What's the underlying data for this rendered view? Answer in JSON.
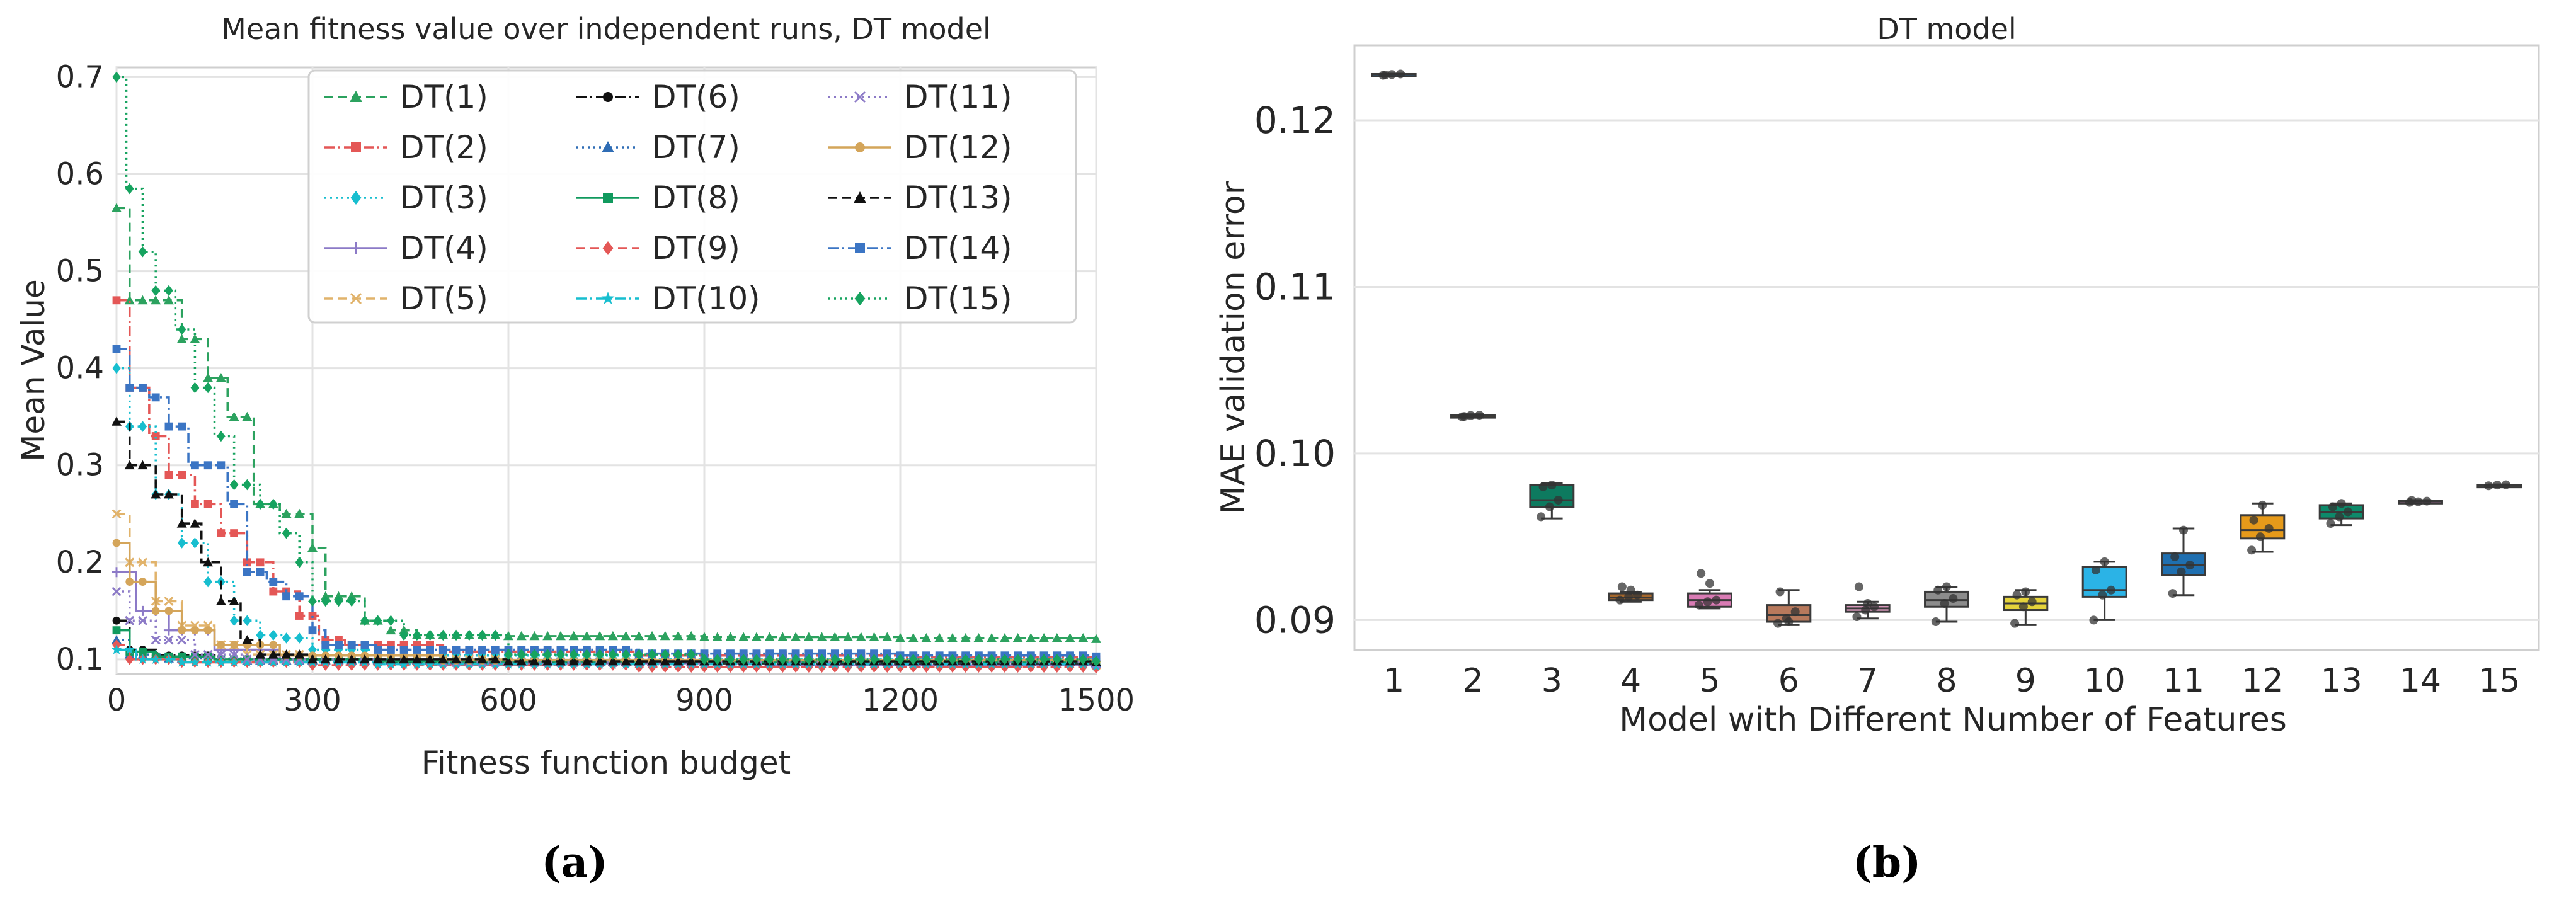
{
  "chart_data": [
    {
      "type": "line",
      "title": "Mean fitness value over independent runs, DT model",
      "xlabel": "Fitness function budget",
      "ylabel": "Mean Value",
      "xlim": [
        0,
        1500
      ],
      "ylim": [
        0.085,
        0.71
      ],
      "xticks": [
        0,
        300,
        600,
        900,
        1200,
        1500
      ],
      "yticks": [
        0.1,
        0.2,
        0.3,
        0.4,
        0.5,
        0.6,
        0.7
      ],
      "grid": true,
      "legend_position": "top-right",
      "panel_label": "(a)",
      "series": [
        {
          "name": "DT(1)",
          "color": "#2ca25f",
          "marker": "triangle",
          "dash": "dashed",
          "points": [
            [
              0,
              0.565
            ],
            [
              20,
              0.47
            ],
            [
              60,
              0.47
            ],
            [
              100,
              0.43
            ],
            [
              140,
              0.39
            ],
            [
              170,
              0.35
            ],
            [
              210,
              0.26
            ],
            [
              250,
              0.25
            ],
            [
              300,
              0.215
            ],
            [
              320,
              0.165
            ],
            [
              380,
              0.14
            ],
            [
              420,
              0.13
            ],
            [
              460,
              0.125
            ],
            [
              600,
              0.124
            ],
            [
              900,
              0.123
            ],
            [
              1200,
              0.122
            ],
            [
              1500,
              0.121
            ]
          ]
        },
        {
          "name": "DT(2)",
          "color": "#e45756",
          "marker": "square",
          "dash": "dashdot",
          "points": [
            [
              0,
              0.47
            ],
            [
              20,
              0.38
            ],
            [
              50,
              0.33
            ],
            [
              80,
              0.29
            ],
            [
              120,
              0.26
            ],
            [
              160,
              0.23
            ],
            [
              200,
              0.2
            ],
            [
              240,
              0.17
            ],
            [
              280,
              0.145
            ],
            [
              310,
              0.12
            ],
            [
              350,
              0.115
            ],
            [
              500,
              0.108
            ],
            [
              800,
              0.104
            ],
            [
              1200,
              0.102
            ],
            [
              1500,
              0.1
            ]
          ]
        },
        {
          "name": "DT(3)",
          "color": "#17becf",
          "marker": "diamond",
          "dash": "dotted",
          "points": [
            [
              0,
              0.4
            ],
            [
              20,
              0.34
            ],
            [
              60,
              0.27
            ],
            [
              100,
              0.22
            ],
            [
              140,
              0.18
            ],
            [
              180,
              0.14
            ],
            [
              220,
              0.125
            ],
            [
              260,
              0.122
            ],
            [
              300,
              0.11
            ],
            [
              400,
              0.104
            ],
            [
              800,
              0.1
            ],
            [
              1500,
              0.098
            ]
          ]
        },
        {
          "name": "DT(4)",
          "color": "#8c7ac7",
          "marker": "plus",
          "dash": "solid",
          "points": [
            [
              0,
              0.19
            ],
            [
              30,
              0.15
            ],
            [
              80,
              0.13
            ],
            [
              150,
              0.11
            ],
            [
              250,
              0.1
            ],
            [
              500,
              0.096
            ],
            [
              1000,
              0.094
            ],
            [
              1500,
              0.093
            ]
          ]
        },
        {
          "name": "DT(5)",
          "color": "#e1b36b",
          "marker": "x",
          "dash": "dashed",
          "points": [
            [
              0,
              0.25
            ],
            [
              20,
              0.2
            ],
            [
              60,
              0.16
            ],
            [
              100,
              0.135
            ],
            [
              150,
              0.115
            ],
            [
              200,
              0.105
            ],
            [
              300,
              0.1
            ],
            [
              600,
              0.097
            ],
            [
              1500,
              0.094
            ]
          ]
        },
        {
          "name": "DT(6)",
          "color": "#111111",
          "marker": "circle",
          "dash": "dashdot",
          "points": [
            [
              0,
              0.14
            ],
            [
              20,
              0.11
            ],
            [
              60,
              0.104
            ],
            [
              150,
              0.1
            ],
            [
              400,
              0.097
            ],
            [
              900,
              0.096
            ],
            [
              1500,
              0.095
            ]
          ]
        },
        {
          "name": "DT(7)",
          "color": "#2f6db5",
          "marker": "triangle",
          "dash": "dotted",
          "points": [
            [
              0,
              0.12
            ],
            [
              20,
              0.105
            ],
            [
              80,
              0.101
            ],
            [
              200,
              0.099
            ],
            [
              600,
              0.097
            ],
            [
              1500,
              0.096
            ]
          ]
        },
        {
          "name": "DT(8)",
          "color": "#119a5e",
          "marker": "square",
          "dash": "solid",
          "points": [
            [
              0,
              0.13
            ],
            [
              20,
              0.108
            ],
            [
              60,
              0.103
            ],
            [
              150,
              0.1
            ],
            [
              400,
              0.098
            ],
            [
              900,
              0.097
            ],
            [
              1500,
              0.097
            ]
          ]
        },
        {
          "name": "DT(9)",
          "color": "#e45756",
          "marker": "diamond",
          "dash": "dashed",
          "points": [
            [
              0,
              0.115
            ],
            [
              20,
              0.1
            ],
            [
              100,
              0.097
            ],
            [
              300,
              0.094
            ],
            [
              800,
              0.092
            ],
            [
              1500,
              0.091
            ]
          ]
        },
        {
          "name": "DT(10)",
          "color": "#17becf",
          "marker": "star",
          "dash": "dashdot",
          "points": [
            [
              0,
              0.11
            ],
            [
              30,
              0.1
            ],
            [
              100,
              0.097
            ],
            [
              400,
              0.095
            ],
            [
              1500,
              0.093
            ]
          ]
        },
        {
          "name": "DT(11)",
          "color": "#8c7ac7",
          "marker": "x",
          "dash": "dotted",
          "points": [
            [
              0,
              0.17
            ],
            [
              20,
              0.14
            ],
            [
              60,
              0.12
            ],
            [
              120,
              0.105
            ],
            [
              200,
              0.1
            ],
            [
              500,
              0.097
            ],
            [
              1500,
              0.095
            ]
          ]
        },
        {
          "name": "DT(12)",
          "color": "#d4a55a",
          "marker": "circle",
          "dash": "solid",
          "points": [
            [
              0,
              0.22
            ],
            [
              20,
              0.18
            ],
            [
              60,
              0.15
            ],
            [
              100,
              0.13
            ],
            [
              150,
              0.115
            ],
            [
              250,
              0.104
            ],
            [
              500,
              0.099
            ],
            [
              1500,
              0.097
            ]
          ]
        },
        {
          "name": "DT(13)",
          "color": "#111111",
          "marker": "triangle",
          "dash": "dashed",
          "points": [
            [
              0,
              0.345
            ],
            [
              20,
              0.3
            ],
            [
              60,
              0.27
            ],
            [
              100,
              0.24
            ],
            [
              130,
              0.2
            ],
            [
              160,
              0.16
            ],
            [
              190,
              0.12
            ],
            [
              220,
              0.105
            ],
            [
              300,
              0.1
            ],
            [
              600,
              0.098
            ],
            [
              1500,
              0.097
            ]
          ]
        },
        {
          "name": "DT(14)",
          "color": "#3b75c4",
          "marker": "square",
          "dash": "dashdot",
          "points": [
            [
              0,
              0.42
            ],
            [
              20,
              0.38
            ],
            [
              50,
              0.37
            ],
            [
              80,
              0.34
            ],
            [
              110,
              0.3
            ],
            [
              140,
              0.3
            ],
            [
              170,
              0.26
            ],
            [
              200,
              0.19
            ],
            [
              230,
              0.18
            ],
            [
              260,
              0.165
            ],
            [
              300,
              0.13
            ],
            [
              320,
              0.115
            ],
            [
              400,
              0.11
            ],
            [
              800,
              0.106
            ],
            [
              1200,
              0.104
            ],
            [
              1500,
              0.103
            ]
          ]
        },
        {
          "name": "DT(15)",
          "color": "#16a35f",
          "marker": "diamond",
          "dash": "dotted",
          "points": [
            [
              0,
              0.7
            ],
            [
              15,
              0.585
            ],
            [
              40,
              0.52
            ],
            [
              60,
              0.48
            ],
            [
              90,
              0.44
            ],
            [
              120,
              0.38
            ],
            [
              150,
              0.33
            ],
            [
              180,
              0.28
            ],
            [
              220,
              0.26
            ],
            [
              250,
              0.23
            ],
            [
              280,
              0.2
            ],
            [
              300,
              0.16
            ],
            [
              350,
              0.16
            ],
            [
              380,
              0.14
            ],
            [
              440,
              0.125
            ],
            [
              600,
              0.105
            ],
            [
              900,
              0.1
            ],
            [
              1500,
              0.098
            ]
          ]
        }
      ]
    },
    {
      "type": "box",
      "title": "DT model",
      "xlabel": "Model with Different Number of Features",
      "ylabel": "MAE validation error",
      "ylim": [
        0.0882,
        0.1245
      ],
      "yticks": [
        0.09,
        0.1,
        0.11,
        0.12
      ],
      "yticklabels": [
        "0.09",
        "0.10",
        "0.11",
        "0.12"
      ],
      "grid": true,
      "panel_label": "(b)",
      "categories": [
        "1",
        "2",
        "3",
        "4",
        "5",
        "6",
        "7",
        "8",
        "9",
        "10",
        "11",
        "12",
        "13",
        "14",
        "15"
      ],
      "boxes": [
        {
          "median": 0.12275,
          "q1": 0.12272,
          "q3": 0.12278,
          "whislo": 0.1227,
          "whishi": 0.1228,
          "color": "#1f77b4",
          "points": [
            0.1227,
            0.12275,
            0.12278,
            0.12272
          ]
        },
        {
          "median": 0.10225,
          "q1": 0.1022,
          "q3": 0.1023,
          "whislo": 0.10215,
          "whishi": 0.10235,
          "color": "#ff7f0e",
          "points": [
            0.1022,
            0.10228,
            0.1023,
            0.10222
          ]
        },
        {
          "median": 0.0972,
          "q1": 0.0968,
          "q3": 0.0981,
          "whislo": 0.0961,
          "whishi": 0.0982,
          "color": "#0d7a5f",
          "points": [
            0.0962,
            0.0968,
            0.0972,
            0.098,
            0.0981
          ]
        },
        {
          "median": 0.09135,
          "q1": 0.0912,
          "q3": 0.0916,
          "whislo": 0.0911,
          "whishi": 0.0917,
          "color": "#a6682c",
          "points": [
            0.0912,
            0.0914,
            0.0915,
            0.092,
            0.0918
          ]
        },
        {
          "median": 0.0912,
          "q1": 0.0908,
          "q3": 0.0916,
          "whislo": 0.0907,
          "whishi": 0.0918,
          "color": "#d97bb4",
          "points": [
            0.0909,
            0.0911,
            0.0912,
            0.0928,
            0.0922
          ]
        },
        {
          "median": 0.0903,
          "q1": 0.0899,
          "q3": 0.0909,
          "whislo": 0.0897,
          "whishi": 0.0918,
          "color": "#b8795c",
          "points": [
            0.0898,
            0.0901,
            0.0905,
            0.0917,
            0.0899
          ]
        },
        {
          "median": 0.0907,
          "q1": 0.0905,
          "q3": 0.0909,
          "whislo": 0.0901,
          "whishi": 0.0911,
          "color": "#e9a3c9",
          "points": [
            0.0902,
            0.0906,
            0.0908,
            0.092,
            0.091
          ]
        },
        {
          "median": 0.0912,
          "q1": 0.0908,
          "q3": 0.0917,
          "whislo": 0.0899,
          "whishi": 0.092,
          "color": "#8c8c8c",
          "points": [
            0.0899,
            0.091,
            0.0913,
            0.0918,
            0.092
          ]
        },
        {
          "median": 0.091,
          "q1": 0.0906,
          "q3": 0.0914,
          "whislo": 0.0897,
          "whishi": 0.0918,
          "color": "#e5d33b",
          "points": [
            0.0898,
            0.0908,
            0.0911,
            0.0915,
            0.0917
          ]
        },
        {
          "median": 0.0918,
          "q1": 0.0914,
          "q3": 0.0932,
          "whislo": 0.09,
          "whishi": 0.0935,
          "color": "#2bb3e6",
          "points": [
            0.09,
            0.0915,
            0.0918,
            0.093,
            0.0935
          ]
        },
        {
          "median": 0.0933,
          "q1": 0.0927,
          "q3": 0.094,
          "whislo": 0.0915,
          "whishi": 0.0955,
          "color": "#1f6fb0",
          "points": [
            0.0916,
            0.0929,
            0.0933,
            0.0938,
            0.0954
          ]
        },
        {
          "median": 0.0954,
          "q1": 0.0949,
          "q3": 0.0963,
          "whislo": 0.0941,
          "whishi": 0.097,
          "color": "#e69a1a",
          "points": [
            0.0942,
            0.095,
            0.0955,
            0.096,
            0.0969
          ]
        },
        {
          "median": 0.0965,
          "q1": 0.0961,
          "q3": 0.0969,
          "whislo": 0.0957,
          "whishi": 0.097,
          "color": "#0d8a6a",
          "points": [
            0.0958,
            0.0962,
            0.0965,
            0.0968,
            0.097
          ]
        },
        {
          "median": 0.09712,
          "q1": 0.09708,
          "q3": 0.09715,
          "whislo": 0.09705,
          "whishi": 0.0972,
          "color": "#cc78bc",
          "points": [
            0.09706,
            0.0971,
            0.09714,
            0.09718
          ]
        },
        {
          "median": 0.0981,
          "q1": 0.09808,
          "q3": 0.09812,
          "whislo": 0.09806,
          "whishi": 0.09814,
          "color": "#5a5a5a",
          "points": [
            0.09806,
            0.0981,
            0.09812
          ]
        }
      ]
    }
  ]
}
